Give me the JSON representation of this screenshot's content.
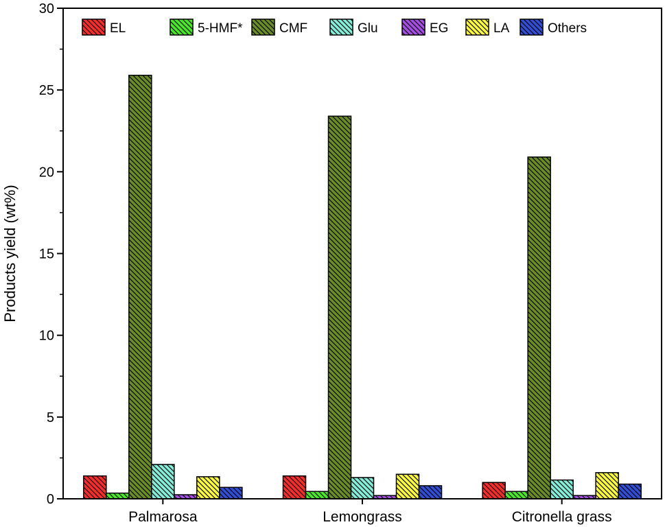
{
  "chart_data": {
    "type": "bar",
    "title": "",
    "xlabel": "",
    "ylabel": "Products yield (wt%)",
    "ylim": [
      0,
      30
    ],
    "yticks": [
      0,
      5,
      10,
      15,
      20,
      25,
      30
    ],
    "categories": [
      "Palmarosa",
      "Lemongrass",
      "Citronella grass"
    ],
    "legend_position": "top",
    "grid": false,
    "bar_fill": "hatched",
    "series": [
      {
        "name": "EL",
        "color": "#ff2a2a",
        "values": [
          1.4,
          1.4,
          1.0
        ]
      },
      {
        "name": "5-HMF*",
        "color": "#44ee22",
        "values": [
          0.35,
          0.45,
          0.45
        ]
      },
      {
        "name": "CMF",
        "color": "#6b8e23",
        "values": [
          25.9,
          23.4,
          20.9
        ]
      },
      {
        "name": "Glu",
        "color": "#7ff0dc",
        "values": [
          2.1,
          1.3,
          1.15
        ]
      },
      {
        "name": "EG",
        "color": "#a84ce6",
        "values": [
          0.25,
          0.2,
          0.2
        ]
      },
      {
        "name": "LA",
        "color": "#ffff33",
        "values": [
          1.35,
          1.5,
          1.6
        ]
      },
      {
        "name": "Others",
        "color": "#2f4fd8",
        "values": [
          0.7,
          0.8,
          0.9
        ]
      }
    ]
  }
}
